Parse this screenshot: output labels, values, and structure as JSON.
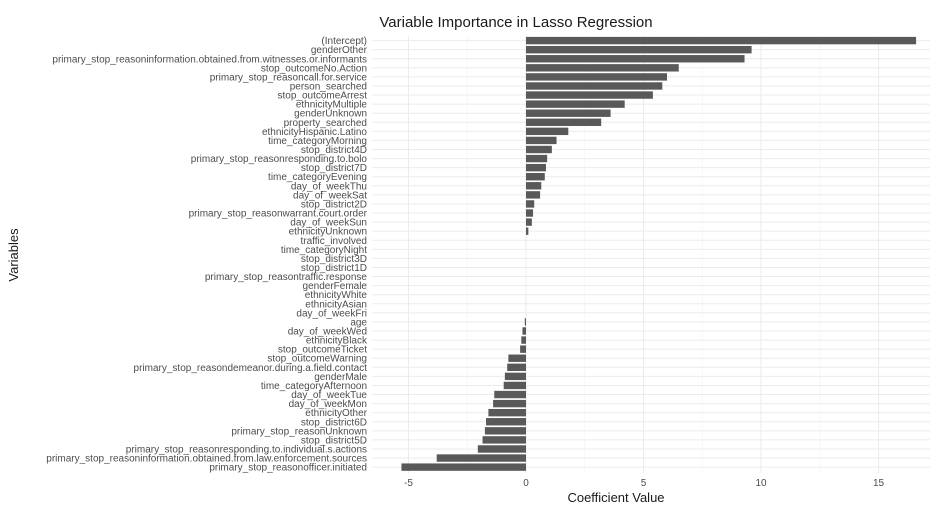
{
  "chart_data": {
    "type": "bar",
    "orientation": "horizontal",
    "title": "Variable Importance in Lasso Regression",
    "xlabel": "Coefficient Value",
    "ylabel": "Variables",
    "xlim": [
      -5.5,
      17.2
    ],
    "xticks": [
      -5,
      0,
      5,
      10,
      15
    ],
    "grid": true,
    "legend": "none",
    "bar_color": "#595959",
    "categories": [
      "(Intercept)",
      "genderOther",
      "primary_stop_reasoninformation.obtained.from.witnesses.or.informants",
      "stop_outcomeNo.Action",
      "primary_stop_reasoncall.for.service",
      "person_searched",
      "stop_outcomeArrest",
      "ethnicityMultiple",
      "genderUnknown",
      "property_searched",
      "ethnicityHispanic.Latino",
      "time_categoryMorning",
      "stop_district4D",
      "primary_stop_reasonresponding.to.bolo",
      "stop_district7D",
      "time_categoryEvening",
      "day_of_weekThu",
      "day_of_weekSat",
      "stop_district2D",
      "primary_stop_reasonwarrant.court.order",
      "day_of_weekSun",
      "ethnicityUnknown",
      "traffic_involved",
      "time_categoryNight",
      "stop_district3D",
      "stop_district1D",
      "primary_stop_reasontraffic.response",
      "genderFemale",
      "ethnicityWhite",
      "ethnicityAsian",
      "day_of_weekFri",
      "age",
      "day_of_weekWed",
      "ethnicityBlack",
      "stop_outcomeTicket",
      "stop_outcomeWarning",
      "primary_stop_reasondemeanor.during.a.field.contact",
      "genderMale",
      "time_categoryAfternoon",
      "day_of_weekTue",
      "day_of_weekMon",
      "ethnicityOther",
      "stop_district6D",
      "primary_stop_reasonUnknown",
      "stop_district5D",
      "primary_stop_reasonresponding.to.individual.s.actions",
      "primary_stop_reasoninformation.obtained.from.law.enforcement.sources",
      "primary_stop_reasonofficer.initiated"
    ],
    "values": [
      16.6,
      9.6,
      9.3,
      6.5,
      6.0,
      5.8,
      5.4,
      4.2,
      3.6,
      3.2,
      1.8,
      1.3,
      1.1,
      0.9,
      0.85,
      0.8,
      0.65,
      0.6,
      0.35,
      0.3,
      0.25,
      0.1,
      0.0,
      0.0,
      0.0,
      0.0,
      0.0,
      0.0,
      0.0,
      0.0,
      0.0,
      -0.05,
      -0.15,
      -0.2,
      -0.25,
      -0.75,
      -0.8,
      -0.9,
      -0.95,
      -1.35,
      -1.4,
      -1.6,
      -1.7,
      -1.75,
      -1.85,
      -2.05,
      -3.8,
      -5.3
    ]
  }
}
